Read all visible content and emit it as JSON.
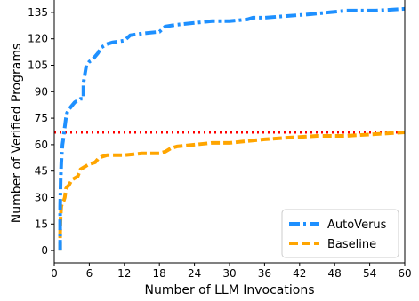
{
  "chart_data": {
    "type": "line",
    "xlabel": "Number of LLM Invocations",
    "ylabel": "Number of Verified Programs",
    "xlim": [
      0,
      60
    ],
    "ylim": [
      -7,
      142
    ],
    "xticks": [
      0,
      6,
      12,
      18,
      24,
      30,
      36,
      42,
      48,
      54,
      60
    ],
    "yticks": [
      0,
      15,
      30,
      45,
      60,
      75,
      90,
      105,
      120,
      135
    ],
    "grid": false,
    "legend_position": "bottom-right",
    "reference_line": {
      "y": 67,
      "style": "dotted",
      "color": "#ff0000"
    },
    "series": [
      {
        "name": "AutoVerus",
        "color": "#1e90ff",
        "style": "dash-dot",
        "x": [
          1,
          1,
          1.1,
          1.2,
          1.3,
          1.4,
          1.5,
          1.6,
          1.8,
          2,
          2.2,
          2.5,
          3,
          3.5,
          4,
          4.5,
          5,
          5,
          5.5,
          6,
          6.5,
          7,
          7.5,
          8,
          8.5,
          9,
          10,
          12,
          13,
          15,
          18,
          19,
          21,
          24,
          27,
          30,
          33,
          34,
          36,
          40,
          44,
          47,
          50,
          55,
          60
        ],
        "y": [
          0,
          25,
          40,
          50,
          55,
          60,
          62,
          65,
          70,
          75,
          78,
          80,
          82,
          84,
          85,
          86,
          86,
          95,
          105,
          107,
          108,
          110,
          112,
          115,
          116,
          117,
          118,
          119,
          122,
          123,
          124,
          127,
          128,
          129,
          130,
          130,
          131,
          132,
          132,
          133,
          134,
          135,
          136,
          136,
          137
        ]
      },
      {
        "name": "Baseline",
        "color": "#ffa500",
        "style": "dashed",
        "x": [
          1,
          1,
          1.1,
          1.2,
          1.3,
          1.4,
          1.6,
          1.8,
          2,
          2.2,
          2.5,
          3,
          3.5,
          4,
          4.5,
          5,
          5.5,
          6,
          7,
          7.5,
          8,
          9,
          10,
          12,
          15,
          18,
          19,
          20,
          21,
          24,
          27,
          30,
          33,
          36,
          40,
          45,
          50,
          55,
          60
        ],
        "y": [
          0,
          10,
          20,
          25,
          26,
          27,
          28,
          30,
          35,
          36,
          37,
          40,
          41,
          42,
          46,
          47,
          48,
          49,
          50,
          52,
          53,
          54,
          54,
          54,
          55,
          55,
          56,
          58,
          59,
          60,
          61,
          61,
          62,
          63,
          64,
          65,
          65,
          66,
          67
        ]
      }
    ]
  }
}
